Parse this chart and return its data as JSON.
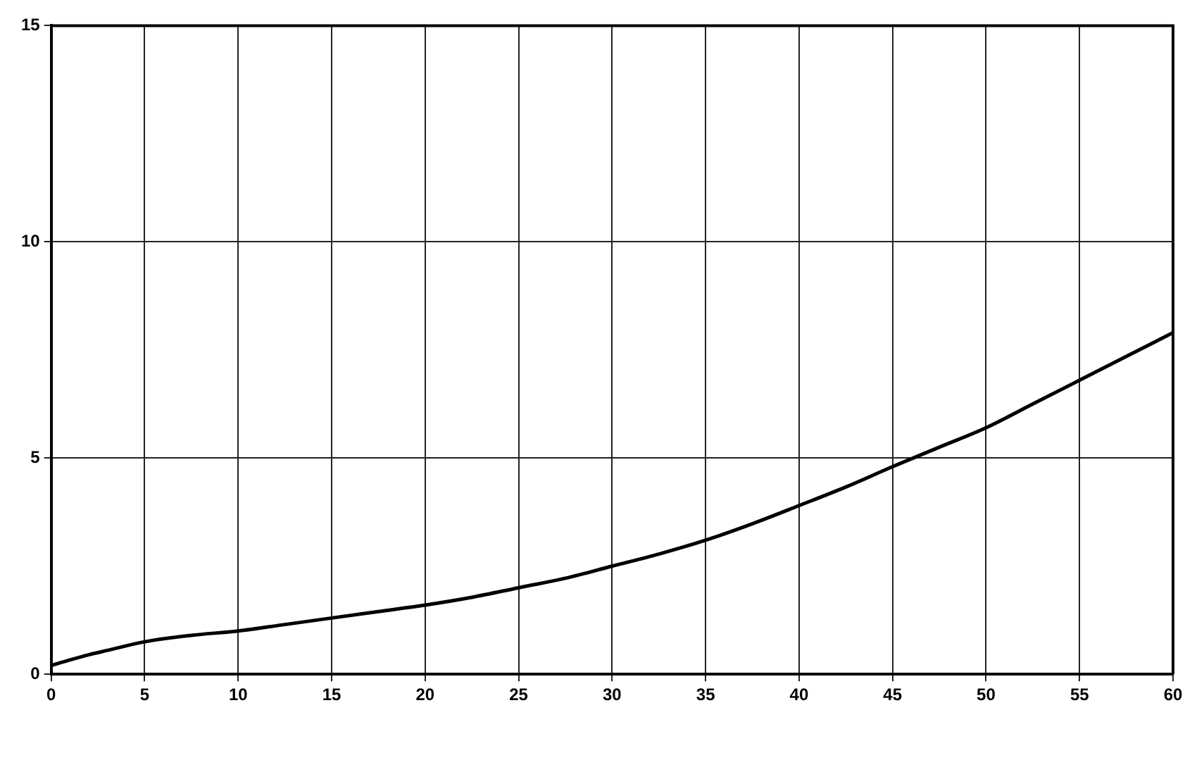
{
  "chart_data": {
    "type": "line",
    "x": [
      0,
      1,
      2,
      3,
      5,
      7.5,
      10,
      12.5,
      15,
      17.5,
      20,
      22.5,
      25,
      27.5,
      30,
      32.5,
      35,
      37.5,
      40,
      42.5,
      45,
      47.5,
      50,
      52.5,
      55,
      57.5,
      60
    ],
    "series": [
      {
        "color": "#000000",
        "values": [
          0.2,
          0.33,
          0.45,
          0.55,
          0.75,
          0.9,
          1.0,
          1.15,
          1.3,
          1.45,
          1.6,
          1.78,
          2.0,
          2.22,
          2.5,
          2.78,
          3.1,
          3.48,
          3.9,
          4.33,
          4.8,
          5.25,
          5.7,
          6.25,
          6.8,
          7.35,
          7.9
        ]
      }
    ],
    "xlim": [
      0,
      60
    ],
    "xticks": [
      0,
      5,
      10,
      15,
      20,
      25,
      30,
      35,
      40,
      45,
      50,
      55,
      60
    ],
    "ylim": [
      0,
      15
    ],
    "yticks": [
      0,
      5,
      10,
      15
    ],
    "grid": true,
    "legend": false,
    "marker": "none",
    "line_style": "solid"
  }
}
